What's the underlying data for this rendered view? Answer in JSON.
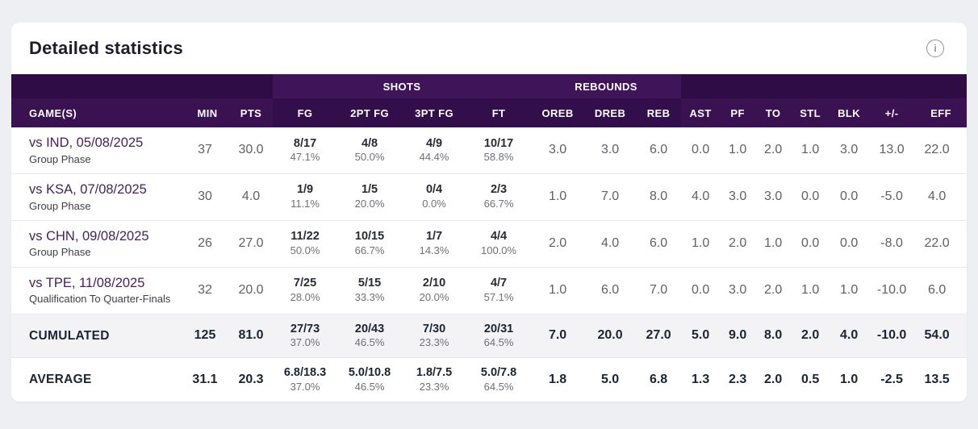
{
  "page": {
    "title": "Detailed statistics",
    "info_icon_glyph": "i"
  },
  "colors": {
    "page_bg": "#edeff2",
    "card_bg": "#ffffff",
    "header_base": "#2f0c44",
    "header_row2": "#3a1251",
    "header_group": "#3f1458",
    "header_group_cols": "#320e4a",
    "game_link": "#482060",
    "summary_text": "#1b2435",
    "shaded_row": "#f3f3f6"
  },
  "table": {
    "groups": [
      {
        "label": "SHOTS"
      },
      {
        "label": "REBOUNDS"
      }
    ],
    "columns": [
      {
        "key": "game",
        "label": "GAME(S)"
      },
      {
        "key": "min",
        "label": "MIN"
      },
      {
        "key": "pts",
        "label": "PTS"
      },
      {
        "key": "fg",
        "label": "FG",
        "group": "SHOTS"
      },
      {
        "key": "fg2",
        "label": "2PT FG",
        "group": "SHOTS"
      },
      {
        "key": "fg3",
        "label": "3PT FG",
        "group": "SHOTS"
      },
      {
        "key": "ft",
        "label": "FT",
        "group": "SHOTS"
      },
      {
        "key": "oreb",
        "label": "OREB",
        "group": "REBOUNDS"
      },
      {
        "key": "dreb",
        "label": "DREB",
        "group": "REBOUNDS"
      },
      {
        "key": "reb",
        "label": "REB",
        "group": "REBOUNDS"
      },
      {
        "key": "ast",
        "label": "AST"
      },
      {
        "key": "pf",
        "label": "PF"
      },
      {
        "key": "to",
        "label": "TO"
      },
      {
        "key": "stl",
        "label": "STL"
      },
      {
        "key": "blk",
        "label": "BLK"
      },
      {
        "key": "plusminus",
        "label": "+/-"
      },
      {
        "key": "eff",
        "label": "EFF"
      }
    ],
    "rows": [
      {
        "type": "game",
        "game": {
          "title": "vs IND, 05/08/2025",
          "subtitle": "Group Phase"
        },
        "min": "37",
        "pts": "30.0",
        "fg": {
          "made": "8/17",
          "pct": "47.1%"
        },
        "fg2": {
          "made": "4/8",
          "pct": "50.0%"
        },
        "fg3": {
          "made": "4/9",
          "pct": "44.4%"
        },
        "ft": {
          "made": "10/17",
          "pct": "58.8%"
        },
        "oreb": "3.0",
        "dreb": "3.0",
        "reb": "6.0",
        "ast": "0.0",
        "pf": "1.0",
        "to": "2.0",
        "stl": "1.0",
        "blk": "3.0",
        "plusminus": "13.0",
        "eff": "22.0"
      },
      {
        "type": "game",
        "game": {
          "title": "vs KSA, 07/08/2025",
          "subtitle": "Group Phase"
        },
        "min": "30",
        "pts": "4.0",
        "fg": {
          "made": "1/9",
          "pct": "11.1%"
        },
        "fg2": {
          "made": "1/5",
          "pct": "20.0%"
        },
        "fg3": {
          "made": "0/4",
          "pct": "0.0%"
        },
        "ft": {
          "made": "2/3",
          "pct": "66.7%"
        },
        "oreb": "1.0",
        "dreb": "7.0",
        "reb": "8.0",
        "ast": "4.0",
        "pf": "3.0",
        "to": "3.0",
        "stl": "0.0",
        "blk": "0.0",
        "plusminus": "-5.0",
        "eff": "4.0"
      },
      {
        "type": "game",
        "game": {
          "title": "vs CHN, 09/08/2025",
          "subtitle": "Group Phase"
        },
        "min": "26",
        "pts": "27.0",
        "fg": {
          "made": "11/22",
          "pct": "50.0%"
        },
        "fg2": {
          "made": "10/15",
          "pct": "66.7%"
        },
        "fg3": {
          "made": "1/7",
          "pct": "14.3%"
        },
        "ft": {
          "made": "4/4",
          "pct": "100.0%"
        },
        "oreb": "2.0",
        "dreb": "4.0",
        "reb": "6.0",
        "ast": "1.0",
        "pf": "2.0",
        "to": "1.0",
        "stl": "0.0",
        "blk": "0.0",
        "plusminus": "-8.0",
        "eff": "22.0"
      },
      {
        "type": "game",
        "game": {
          "title": "vs TPE, 11/08/2025",
          "subtitle": "Qualification To Quarter-Finals"
        },
        "min": "32",
        "pts": "20.0",
        "fg": {
          "made": "7/25",
          "pct": "28.0%"
        },
        "fg2": {
          "made": "5/15",
          "pct": "33.3%"
        },
        "fg3": {
          "made": "2/10",
          "pct": "20.0%"
        },
        "ft": {
          "made": "4/7",
          "pct": "57.1%"
        },
        "oreb": "1.0",
        "dreb": "6.0",
        "reb": "7.0",
        "ast": "0.0",
        "pf": "3.0",
        "to": "2.0",
        "stl": "1.0",
        "blk": "1.0",
        "plusminus": "-10.0",
        "eff": "6.0"
      },
      {
        "type": "summary",
        "shaded": true,
        "game": {
          "title": "CUMULATED"
        },
        "min": "125",
        "pts": "81.0",
        "fg": {
          "made": "27/73",
          "pct": "37.0%"
        },
        "fg2": {
          "made": "20/43",
          "pct": "46.5%"
        },
        "fg3": {
          "made": "7/30",
          "pct": "23.3%"
        },
        "ft": {
          "made": "20/31",
          "pct": "64.5%"
        },
        "oreb": "7.0",
        "dreb": "20.0",
        "reb": "27.0",
        "ast": "5.0",
        "pf": "9.0",
        "to": "8.0",
        "stl": "2.0",
        "blk": "4.0",
        "plusminus": "-10.0",
        "eff": "54.0"
      },
      {
        "type": "summary",
        "game": {
          "title": "AVERAGE"
        },
        "min": "31.1",
        "pts": "20.3",
        "fg": {
          "made": "6.8/18.3",
          "pct": "37.0%"
        },
        "fg2": {
          "made": "5.0/10.8",
          "pct": "46.5%"
        },
        "fg3": {
          "made": "1.8/7.5",
          "pct": "23.3%"
        },
        "ft": {
          "made": "5.0/7.8",
          "pct": "64.5%"
        },
        "oreb": "1.8",
        "dreb": "5.0",
        "reb": "6.8",
        "ast": "1.3",
        "pf": "2.3",
        "to": "2.0",
        "stl": "0.5",
        "blk": "1.0",
        "plusminus": "-2.5",
        "eff": "13.5"
      }
    ]
  }
}
